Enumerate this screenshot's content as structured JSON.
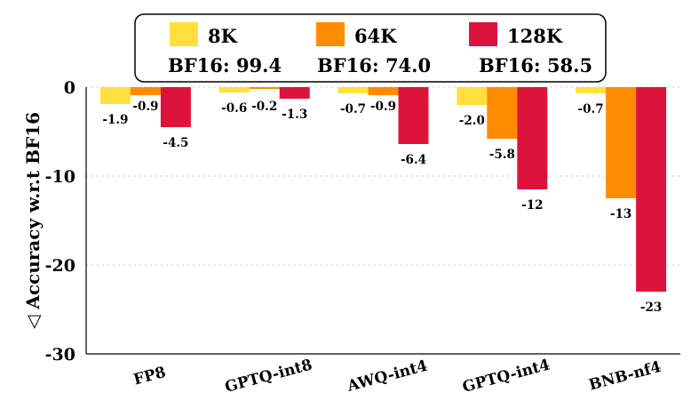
{
  "chart_data": {
    "type": "bar",
    "title": "",
    "xlabel": "",
    "ylabel": "◁ Accuracy w.r.t BF16",
    "ylim": [
      -30,
      0
    ],
    "yticks": [
      0,
      -10,
      -20,
      -30
    ],
    "ytick_labels": [
      "0",
      "-10",
      "-20",
      "-30"
    ],
    "legend_position": "top",
    "categories": [
      "FP8",
      "GPTQ-int8",
      "AWQ-int4",
      "GPTQ-int4",
      "BNB-nf4"
    ],
    "series": [
      {
        "name": "8K",
        "baseline": "BF16: 99.4",
        "color": "#FFE03D",
        "values": [
          -1.9,
          -0.6,
          -0.7,
          -2.0,
          -0.7
        ],
        "labels": [
          "-1.9",
          "-0.6",
          "-0.7",
          "-2.0",
          "-0.7"
        ]
      },
      {
        "name": "64K",
        "baseline": "BF16: 74.0",
        "color": "#FF8C00",
        "values": [
          -0.9,
          -0.2,
          -0.9,
          -5.8,
          -12.5
        ],
        "labels": [
          "-0.9",
          "-0.2",
          "-0.9",
          "-5.8",
          "-13"
        ]
      },
      {
        "name": "128K",
        "baseline": "BF16: 58.5",
        "color": "#DC143C",
        "values": [
          -4.5,
          -1.3,
          -6.4,
          -11.5,
          -23
        ],
        "labels": [
          "-4.5",
          "-1.3",
          "-6.4",
          "-12",
          "-23"
        ]
      }
    ]
  }
}
